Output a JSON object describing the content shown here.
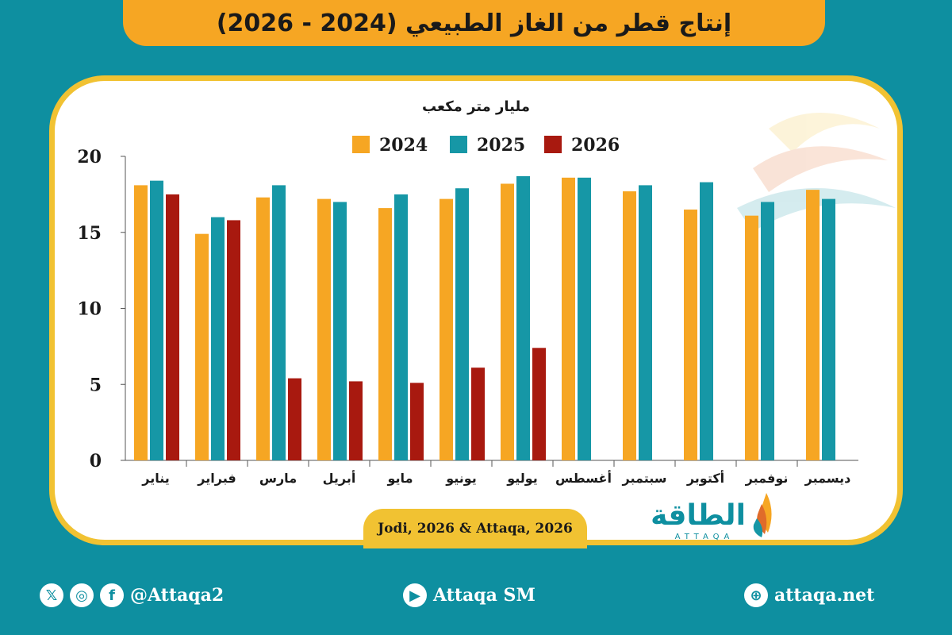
{
  "title": "إنتاج قطر من الغاز الطبيعي (2024 - 2026)",
  "source": "Jodi, 2026 & Attaqa, 2026",
  "logo": {
    "arabic": "الطاقة",
    "latin": "ATTAQA"
  },
  "footer": {
    "social_handle": "@Attaqa2",
    "youtube": "Attaqa SM",
    "website": "attaqa.net"
  },
  "colors": {
    "2024": "#f6a623",
    "2025": "#1697a6",
    "2026": "#a8190f",
    "accent": "#f1c232",
    "background": "#0e8fa0"
  },
  "chart_data": {
    "type": "bar",
    "ylabel": "مليار متر مكعب",
    "ylim": [
      0,
      20
    ],
    "yticks": [
      0,
      5,
      10,
      15,
      20
    ],
    "legend_position": "top-center",
    "categories": [
      "يناير",
      "فبراير",
      "مارس",
      "أبريل",
      "مايو",
      "يونيو",
      "يوليو",
      "أغسطس",
      "سبتمبر",
      "أكتوبر",
      "نوفمبر",
      "ديسمبر"
    ],
    "series": [
      {
        "name": "2024",
        "values": [
          18.1,
          14.9,
          17.3,
          17.2,
          16.6,
          17.2,
          18.2,
          18.6,
          17.7,
          16.5,
          16.1,
          17.8
        ]
      },
      {
        "name": "2025",
        "values": [
          18.4,
          16.0,
          18.1,
          17.0,
          17.5,
          17.9,
          18.7,
          18.6,
          18.1,
          18.3,
          17.0,
          17.2
        ]
      },
      {
        "name": "2026",
        "values": [
          17.5,
          15.8,
          5.4,
          5.2,
          5.1,
          6.1,
          7.4,
          null,
          null,
          null,
          null,
          null
        ]
      }
    ]
  }
}
